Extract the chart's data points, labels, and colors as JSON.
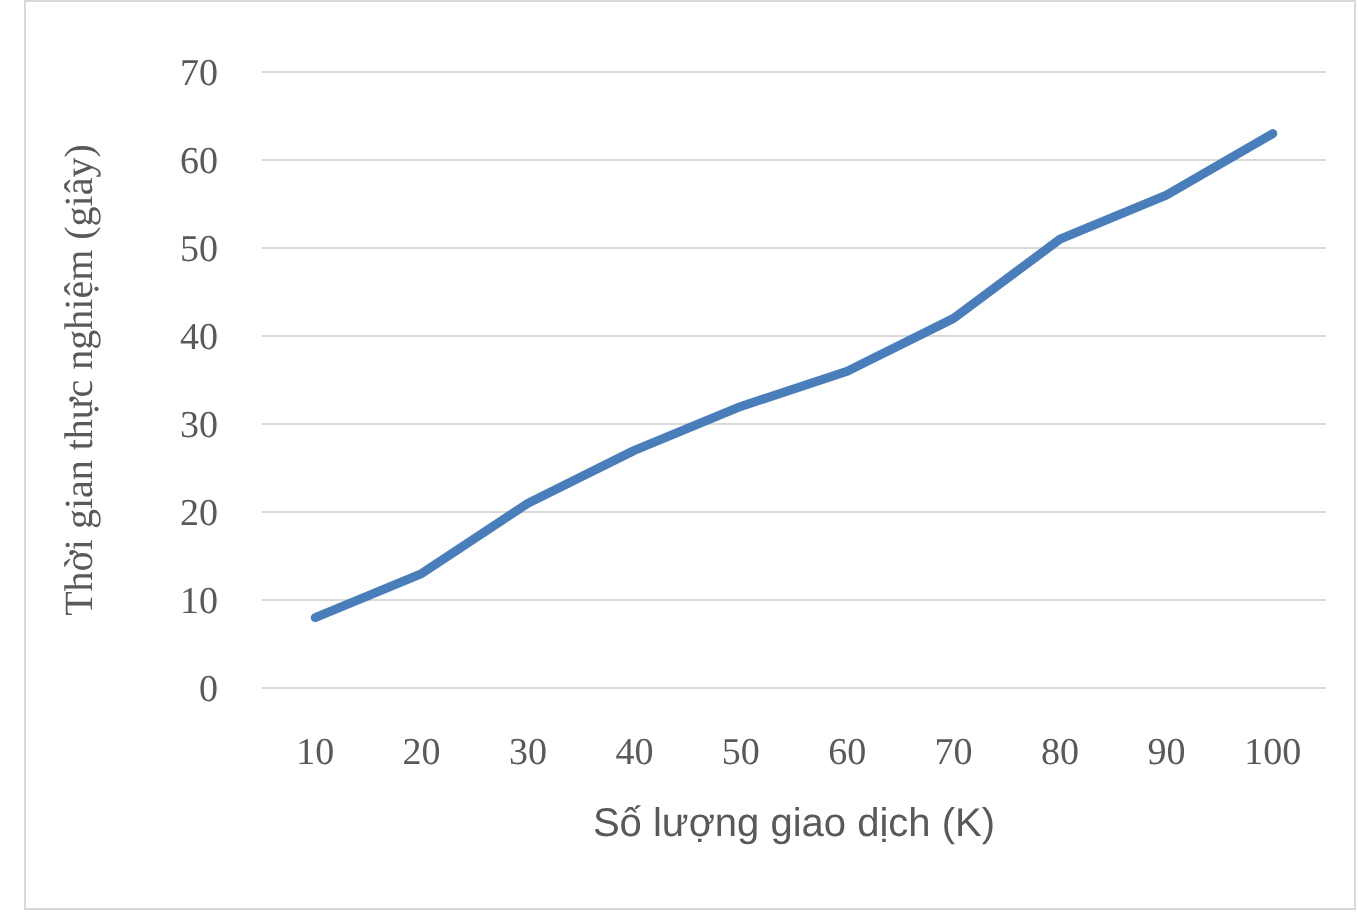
{
  "chart_data": {
    "type": "line",
    "xlabel": "Số lượng giao dịch (K)",
    "ylabel": "Thời gian thực nghiệm (giây)",
    "categories": [
      "10",
      "20",
      "30",
      "40",
      "50",
      "60",
      "70",
      "80",
      "90",
      "100"
    ],
    "series": [
      {
        "color": "#4a7ebb",
        "values": [
          8,
          13,
          21,
          27,
          32,
          36,
          42,
          51,
          56,
          63
        ]
      }
    ],
    "ylim": [
      0,
      70
    ],
    "yticks": [
      0,
      10,
      20,
      30,
      40,
      50,
      60,
      70
    ],
    "grid": "y",
    "marker": "none",
    "line_style": "solid"
  }
}
